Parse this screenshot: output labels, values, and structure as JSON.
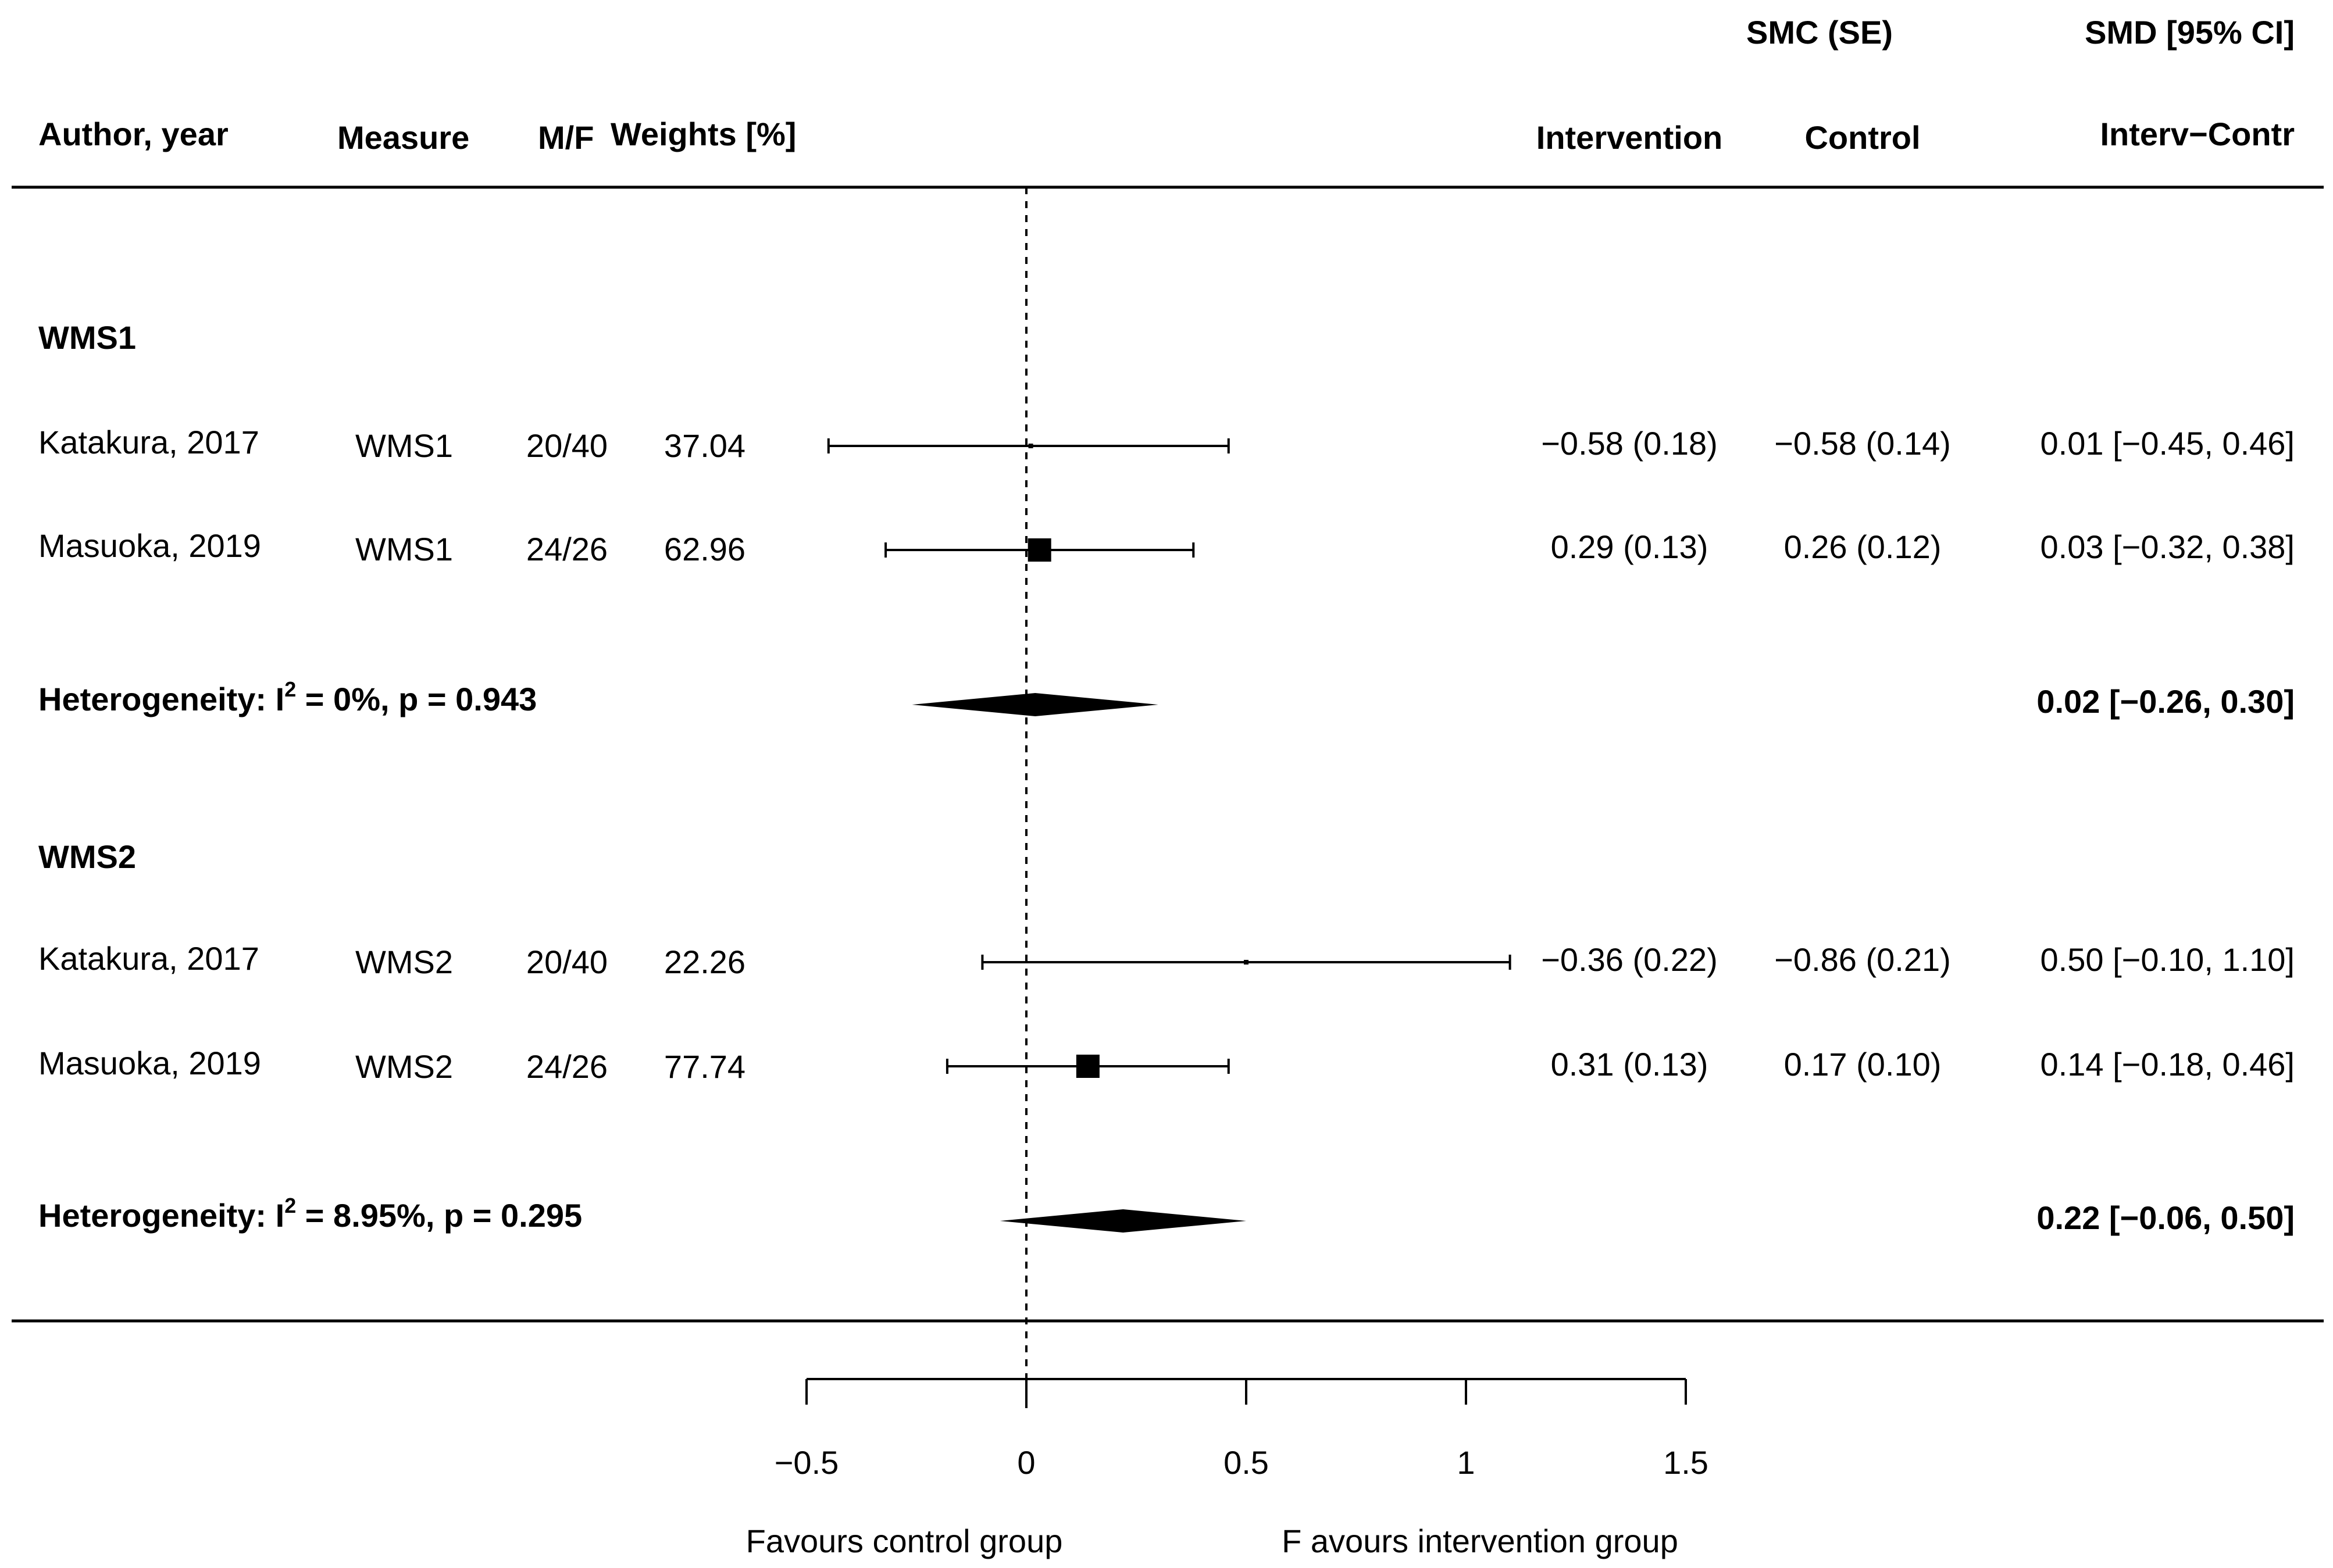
{
  "chart_data": {
    "type": "forest",
    "headers": {
      "author": "Author, year",
      "measure": "Measure",
      "mf": "M/F",
      "weights": "Weights [%]",
      "smc_group": "SMC (SE)",
      "intervention": "Intervention",
      "control": "Control",
      "smd_group": "SMD [95% CI]",
      "diff": "Interv−Contr"
    },
    "groups": [
      {
        "label": "WMS1",
        "studies": [
          {
            "author": "Katakura, 2017",
            "measure": "WMS1",
            "mf": "20/40",
            "weight": "37.04",
            "weight_value": 37.04,
            "intervention": "−0.58 (0.18)",
            "control": "−0.58 (0.14)",
            "ci_text": "0.01 [−0.45, 0.46]",
            "est": 0.01,
            "lo": -0.45,
            "hi": 0.46
          },
          {
            "author": "Masuoka, 2019",
            "measure": "WMS1",
            "mf": "24/26",
            "weight": "62.96",
            "weight_value": 62.96,
            "intervention": "0.29 (0.13)",
            "control": "0.26 (0.12)",
            "ci_text": "0.03 [−0.32, 0.38]",
            "est": 0.03,
            "lo": -0.32,
            "hi": 0.38
          }
        ],
        "heterogeneity_prefix": "Heterogeneity: I",
        "heterogeneity_sup": "2",
        "heterogeneity_suffix": " = 0%,  p = 0.943",
        "summary_text": "0.02 [−0.26, 0.30]",
        "summary": {
          "est": 0.02,
          "lo": -0.26,
          "hi": 0.3
        }
      },
      {
        "label": "WMS2",
        "studies": [
          {
            "author": "Katakura, 2017",
            "measure": "WMS2",
            "mf": "20/40",
            "weight": "22.26",
            "weight_value": 22.26,
            "intervention": "−0.36 (0.22)",
            "control": "−0.86 (0.21)",
            "ci_text": "0.50 [−0.10, 1.10]",
            "est": 0.5,
            "lo": -0.1,
            "hi": 1.1
          },
          {
            "author": "Masuoka, 2019",
            "measure": "WMS2",
            "mf": "24/26",
            "weight": "77.74",
            "weight_value": 77.74,
            "intervention": "0.31 (0.13)",
            "control": "0.17 (0.10)",
            "ci_text": "0.14 [−0.18, 0.46]",
            "est": 0.14,
            "lo": -0.18,
            "hi": 0.46
          }
        ],
        "heterogeneity_prefix": "Heterogeneity: I",
        "heterogeneity_sup": "2",
        "heterogeneity_suffix": " = 8.95%,  p = 0.295",
        "summary_text": "0.22 [−0.06, 0.50]",
        "summary": {
          "est": 0.22,
          "lo": -0.06,
          "hi": 0.5
        }
      }
    ],
    "x_axis": {
      "ticks": [
        -0.5,
        0,
        0.5,
        1,
        1.5
      ],
      "tick_labels": [
        "−0.5",
        "0",
        "0.5",
        "1",
        "1.5"
      ],
      "xlim": [
        -0.5,
        1.5
      ],
      "reference_line": 0
    },
    "favours_left": "Favours control group",
    "favours_right": "F avours intervention group"
  }
}
